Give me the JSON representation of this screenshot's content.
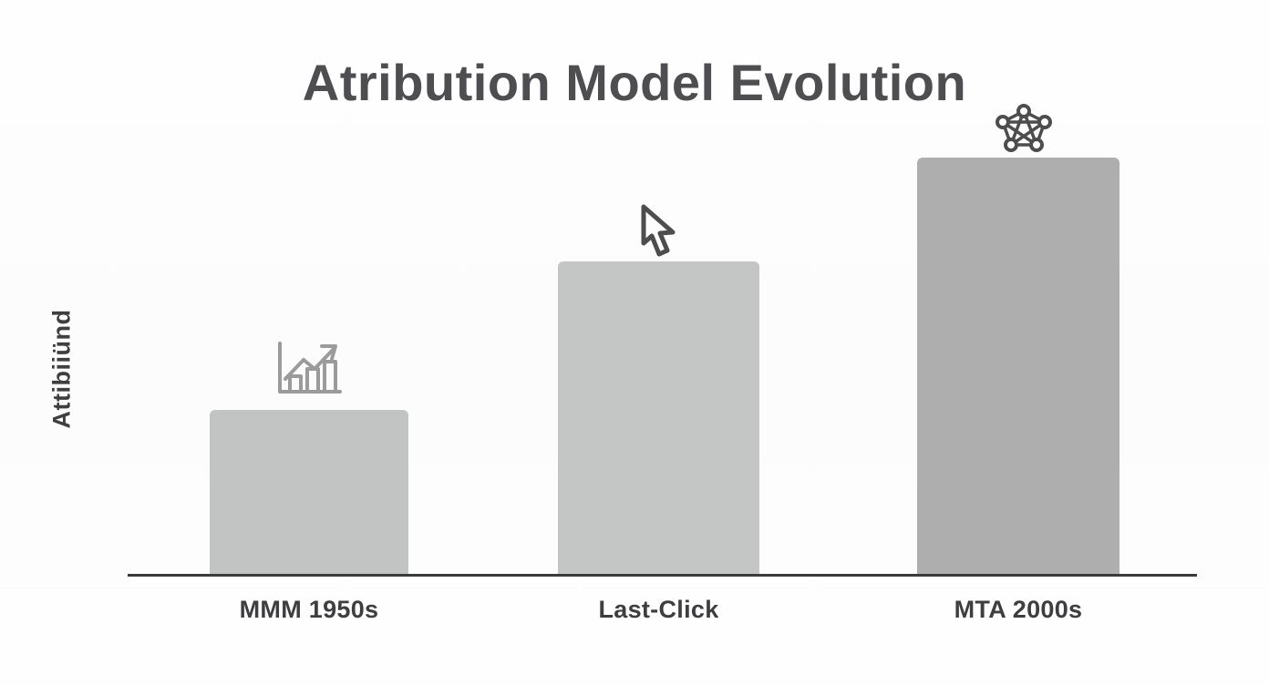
{
  "title": "Atribution Model Evolution",
  "y_axis_label": "Attibiiünd",
  "chart_data": {
    "type": "bar",
    "title": "Atribution Model Evolution",
    "categories": [
      "MMM 1950s",
      "Last-Click",
      "MTA 2000s"
    ],
    "values": [
      30,
      57,
      76
    ],
    "xlabel": "",
    "ylabel": "Attibiiünd",
    "ylim": [
      0,
      100
    ],
    "grid": false,
    "legend": false,
    "bar_colors": [
      "#c2c4c3",
      "#c4c6c5",
      "#aeaeae"
    ],
    "icons": [
      "bar-chart-growth-icon",
      "cursor-pointer-icon",
      "network-graph-icon"
    ]
  },
  "colors": {
    "background": "#fdfdfd",
    "title_text": "#4e4e51",
    "label_text": "#3e3e40",
    "axis_line": "#3b3b3b",
    "icon_light_gray": "#9b9b9b",
    "icon_dark_gray": "#4d4d4d"
  }
}
